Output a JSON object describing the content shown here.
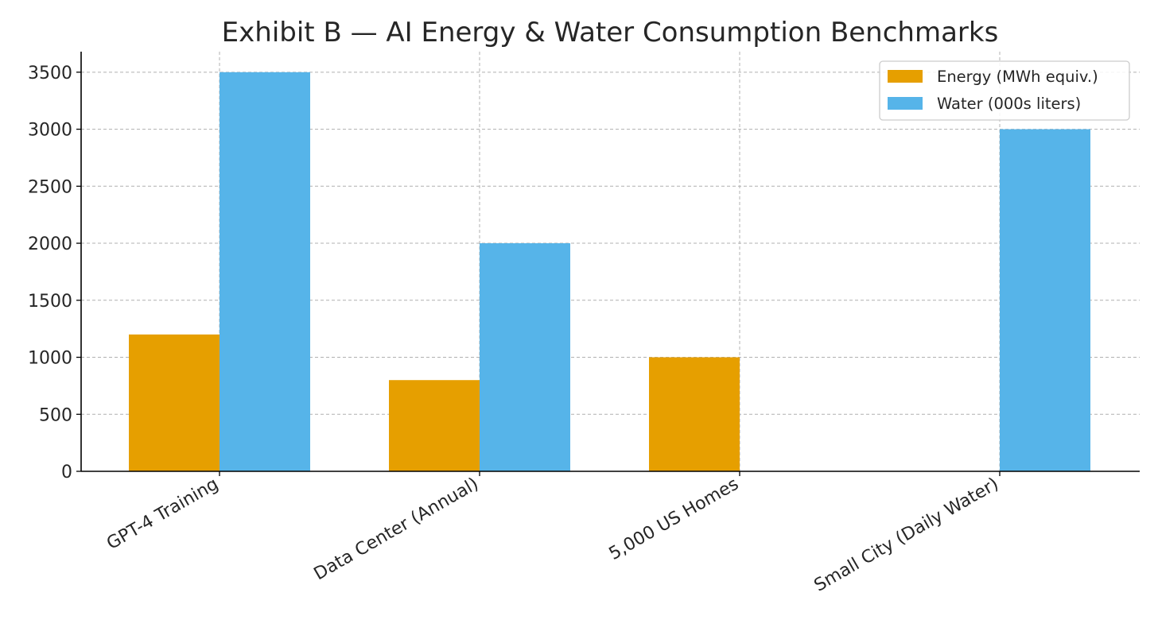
{
  "chart_data": {
    "type": "bar",
    "title": "Exhibit B — AI Energy & Water Consumption Benchmarks",
    "xlabel": "",
    "ylabel": "",
    "categories": [
      "GPT-4 Training",
      "Data Center (Annual)",
      "5,000 US Homes",
      "Small City (Daily Water)"
    ],
    "series": [
      {
        "name": "Energy (MWh equiv.)",
        "values": [
          1200,
          800,
          1000,
          0
        ],
        "color": "#E69F00"
      },
      {
        "name": "Water (000s liters)",
        "values": [
          3500,
          2000,
          0,
          3000
        ],
        "color": "#56B4E9"
      }
    ],
    "ylim": [
      0,
      3680
    ],
    "yticks": [
      0,
      500,
      1000,
      1500,
      2000,
      2500,
      3000,
      3500
    ],
    "grid": true,
    "legend": "top-right"
  }
}
